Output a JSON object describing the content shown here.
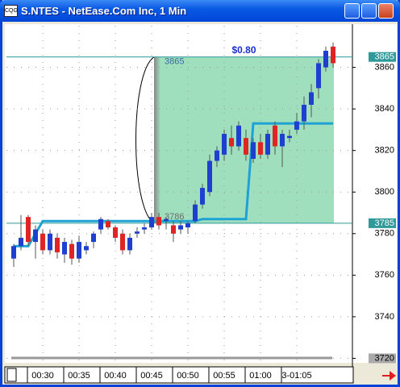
{
  "window_title": "S.NTES - NetEase.Com Inc, 1 Min",
  "chart_data": {
    "type": "candlestick",
    "categories": [
      null,
      null,
      null,
      null,
      "00:30",
      null,
      null,
      null,
      null,
      "00:35",
      null,
      null,
      null,
      null,
      "00:40",
      null,
      null,
      null,
      null,
      "00:45",
      null,
      null,
      null,
      null,
      "00:50",
      null,
      null,
      null,
      null,
      "00:55",
      null,
      null,
      null,
      null,
      "01:00",
      null,
      null,
      null,
      null,
      "3-01:05",
      null,
      null,
      null,
      null,
      null
    ],
    "open": [
      3768,
      3774,
      3788,
      3776,
      3780,
      3772,
      3778,
      3770,
      3775,
      3768,
      3772,
      3776,
      3782,
      3786,
      3783,
      3780,
      3772,
      3780,
      3782,
      3783,
      3788,
      3786,
      3784,
      3782,
      3783,
      3786,
      3794,
      3800,
      3815,
      3818,
      3826,
      3822,
      3826,
      3816,
      3824,
      3818,
      3832,
      3822,
      3826,
      3830,
      3834,
      3842,
      3850,
      3860,
      3870
    ],
    "high": [
      3775,
      3789,
      3789,
      3784,
      3782,
      3782,
      3780,
      3778,
      3777,
      3779,
      3776,
      3781,
      3788,
      3787,
      3784,
      3782,
      3780,
      3783,
      3785,
      3790,
      3790,
      3788,
      3786,
      3786,
      3786,
      3796,
      3804,
      3818,
      3822,
      3830,
      3832,
      3834,
      3830,
      3826,
      3828,
      3830,
      3834,
      3830,
      3830,
      3838,
      3846,
      3852,
      3864,
      3870,
      3872
    ],
    "low": [
      3764,
      3772,
      3774,
      3768,
      3770,
      3770,
      3768,
      3766,
      3765,
      3766,
      3770,
      3773,
      3780,
      3782,
      3776,
      3770,
      3770,
      3778,
      3780,
      3782,
      3782,
      3782,
      3776,
      3780,
      3780,
      3785,
      3792,
      3798,
      3812,
      3815,
      3818,
      3820,
      3815,
      3814,
      3816,
      3816,
      3818,
      3812,
      3824,
      3828,
      3830,
      3836,
      3845,
      3858,
      3860
    ],
    "close": [
      3774,
      3778,
      3776,
      3782,
      3772,
      3780,
      3771,
      3776,
      3768,
      3776,
      3774,
      3780,
      3787,
      3783,
      3778,
      3772,
      3778,
      3781,
      3783,
      3788,
      3784,
      3787,
      3780,
      3784,
      3785,
      3794,
      3802,
      3815,
      3820,
      3828,
      3822,
      3832,
      3818,
      3824,
      3818,
      3828,
      3822,
      3828,
      3827,
      3834,
      3842,
      3848,
      3862,
      3868,
      3862
    ],
    "up_color": "#1f3fd0",
    "down_color": "#e02424",
    "indicator": {
      "color": "#1ea2d4",
      "values": [
        3774,
        3774,
        3774,
        3780,
        3786,
        3786,
        3786,
        3786,
        3786,
        3786,
        3786,
        3786,
        3786,
        3786,
        3786,
        3786,
        3786,
        3786,
        3786,
        3786,
        3786,
        3786,
        3786,
        3786,
        3786,
        3786,
        3787,
        3787,
        3787,
        3787,
        3787,
        3787,
        3787,
        3833,
        3833,
        3833,
        3833,
        3833,
        3833,
        3833,
        3833,
        3833,
        3833,
        3833,
        3833
      ]
    },
    "levels": [
      3865,
      3785
    ],
    "level_color": "#2e9a9a",
    "zone": {
      "color": "#a0dfbe",
      "change": "$0.80",
      "high_label": "3865",
      "low_label": "3786"
    },
    "ylim": [
      3719,
      3880
    ],
    "yticks": [
      3720,
      3740,
      3760,
      3780,
      3800,
      3820,
      3840,
      3860
    ],
    "grid": true
  }
}
